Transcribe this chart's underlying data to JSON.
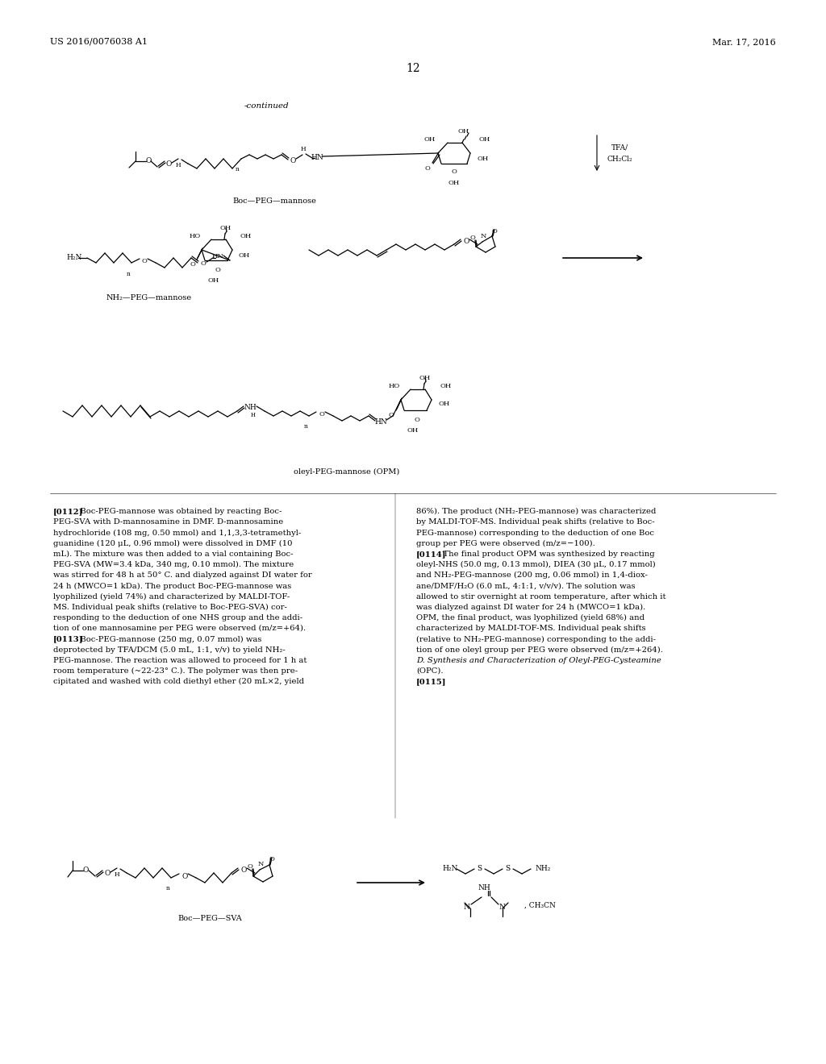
{
  "background_color": "#ffffff",
  "header_left": "US 2016/0076038 A1",
  "header_right": "Mar. 17, 2016",
  "page_number": "12",
  "continued_label": "-continued",
  "col1_lines": [
    "[0112]   Boc-PEG-mannose was obtained by reacting Boc-",
    "PEG-SVA with D-mannosamine in DMF. D-mannosamine",
    "hydrochloride (108 mg, 0.50 mmol) and 1,1,3,3-tetramethyl-",
    "guanidine (120 μL, 0.96 mmol) were dissolved in DMF (10",
    "mL). The mixture was then added to a vial containing Boc-",
    "PEG-SVA (MW=3.4 kDa, 340 mg, 0.10 mmol). The mixture",
    "was stirred for 48 h at 50° C. and dialyzed against DI water for",
    "24 h (MWCO=1 kDa). The product Boc-PEG-mannose was",
    "lyophilized (yield 74%) and characterized by MALDI-TOF-",
    "MS. Individual peak shifts (relative to Boc-PEG-SVA) cor-",
    "responding to the deduction of one NHS group and the addi-",
    "tion of one mannosamine per PEG were observed (m/z=+64).",
    "[0113]   Boc-PEG-mannose (250 mg, 0.07 mmol) was",
    "deprotected by TFA/DCM (5.0 mL, 1:1, v/v) to yield NH₂-",
    "PEG-mannose. The reaction was allowed to proceed for 1 h at",
    "room temperature (~22-23° C.). The polymer was then pre-",
    "cipitated and washed with cold diethyl ether (20 mL×2, yield"
  ],
  "col2_lines": [
    "86%). The product (NH₂-PEG-mannose) was characterized",
    "by MALDI-TOF-MS. Individual peak shifts (relative to Boc-",
    "PEG-mannose) corresponding to the deduction of one Boc",
    "group per PEG were observed (m/z=−100).",
    "[0114]   The final product OPM was synthesized by reacting",
    "oleyl-NHS (50.0 mg, 0.13 mmol), DIEA (30 μL, 0.17 mmol)",
    "and NH₂-PEG-mannose (200 mg, 0.06 mmol) in 1,4-diox-",
    "ane/DMF/H₂O (6.0 mL, 4:1:1, v/v/v). The solution was",
    "allowed to stir overnight at room temperature, after which it",
    "was dialyzed against DI water for 24 h (MWCO=1 kDa).",
    "OPM, the final product, was lyophilized (yield 68%) and",
    "characterized by MALDI-TOF-MS. Individual peak shifts",
    "(relative to NH₂-PEG-mannose) corresponding to the addi-",
    "tion of one oleyl group per PEG were observed (m/z=+264).",
    "D. Synthesis and Characterization of Oleyl-PEG-Cysteamine",
    "(OPC).",
    "[0115]"
  ],
  "boc_peg_mannose_label": "Boc—PEG—mannose",
  "nh2_peg_mannose_label": "NH₂—PEG—mannose",
  "opm_label": "oleyl-PEG-mannose (OPM)",
  "boc_peg_sva_label": "Boc—PEG—SVA",
  "tfa_ch2cl2": "TFA/\nCH₂Cl₂",
  "ch3cn": ", CH₃CN"
}
